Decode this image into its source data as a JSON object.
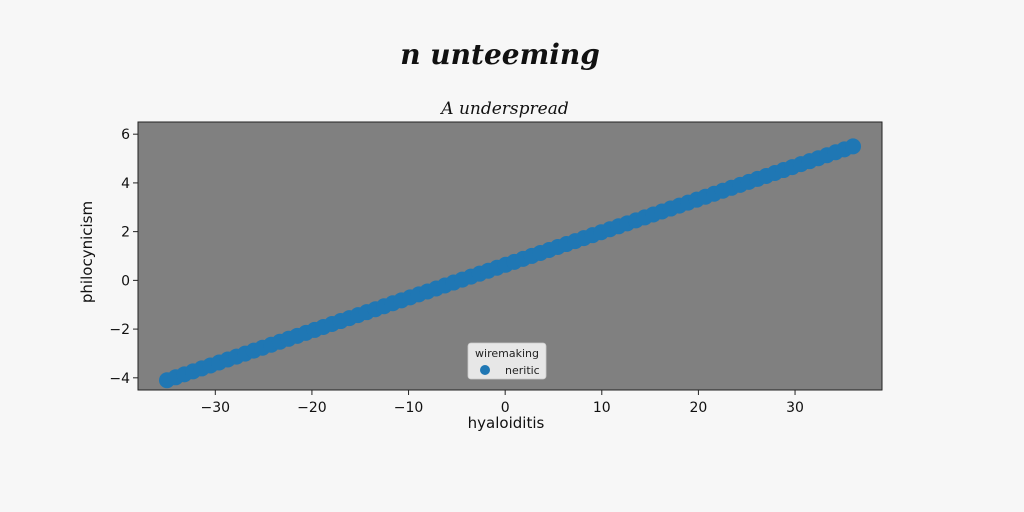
{
  "chart_data": {
    "type": "scatter",
    "title": "n unteeming",
    "subtitle": "A underspread",
    "xlabel": "hyaloiditis",
    "ylabel": "philocynicism",
    "xlim": [
      -38,
      39
    ],
    "ylim": [
      -4.5,
      6.5
    ],
    "xticks": [
      -30,
      -20,
      -10,
      0,
      10,
      20,
      30
    ],
    "xtick_labels": [
      "−30",
      "−20",
      "−10",
      "0",
      "10",
      "20",
      "30"
    ],
    "yticks": [
      -4,
      -2,
      0,
      2,
      4,
      6
    ],
    "ytick_labels": [
      "−4",
      "−2",
      "0",
      "2",
      "4",
      "6"
    ],
    "grid": false,
    "legend": {
      "title": "wiremaking",
      "placement": "lower-center"
    },
    "series": [
      {
        "name": "neritic",
        "color": "#1f77b4",
        "x_start": -35,
        "x_end": 36,
        "count": 80,
        "y_start": -4.1,
        "y_end": 5.5
      }
    ],
    "plot_background": "#808080"
  }
}
